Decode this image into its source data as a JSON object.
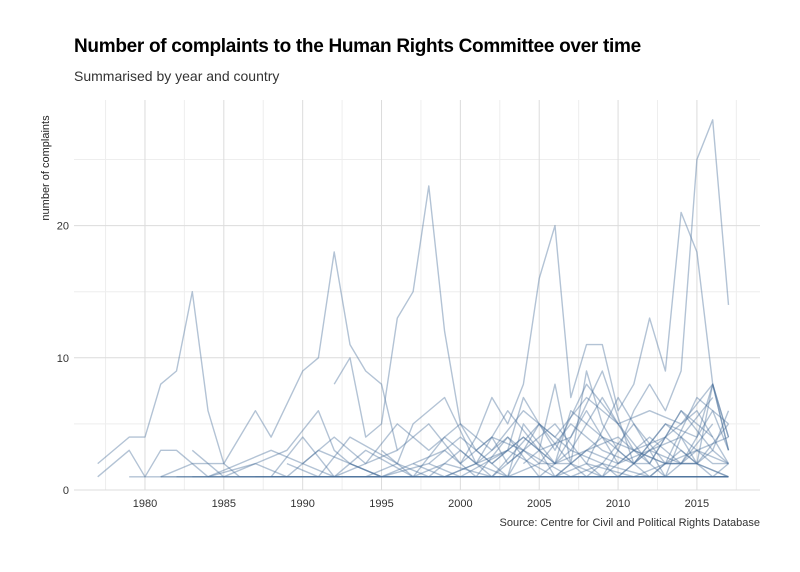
{
  "title": "Number of complaints to the Human Rights Committee over time",
  "subtitle": "Summarised by year and country",
  "caption": "Source: Centre for Civil and Political Rights Database",
  "colors": {
    "line": "#4a6f9a",
    "grid_major": "#dcdcdc",
    "grid_minor": "#eeeeee"
  },
  "chart_data": {
    "type": "line",
    "title": "Number of complaints to the Human Rights Committee over time",
    "subtitle": "Summarised by year and country",
    "xlabel": "",
    "ylabel": "number of complaints",
    "xlim": [
      1975.5,
      2019
    ],
    "ylim": [
      0,
      29.5
    ],
    "x_ticks": [
      1980,
      1985,
      1990,
      1995,
      2000,
      2005,
      2010,
      2015
    ],
    "y_ticks": [
      0,
      10,
      20
    ],
    "grid": true,
    "series": [
      {
        "x": [
          1977,
          1979,
          1980,
          1981,
          1982,
          1983,
          1984,
          1985,
          1986
        ],
        "y": [
          2,
          4,
          4,
          8,
          9,
          15,
          6,
          2,
          1
        ]
      },
      {
        "x": [
          1977,
          1979,
          1980,
          1981,
          1982,
          1984,
          1986
        ],
        "y": [
          1,
          3,
          1,
          3,
          3,
          1,
          2
        ]
      },
      {
        "x": [
          1981,
          1983,
          1985,
          1987,
          1988,
          1990,
          1991,
          1992,
          1993,
          1994,
          1995,
          1996
        ],
        "y": [
          1,
          2,
          2,
          6,
          4,
          9,
          10,
          18,
          11,
          9,
          8,
          3
        ]
      },
      {
        "x": [
          1983,
          1985,
          1987,
          1989,
          1991,
          1992,
          1993,
          1995
        ],
        "y": [
          3,
          1,
          2,
          3,
          6,
          3,
          2,
          1
        ]
      },
      {
        "x": [
          1992,
          1993,
          1994,
          1995,
          1996,
          1997,
          1998,
          1999,
          2000,
          2001,
          2002,
          2003,
          2004
        ],
        "y": [
          8,
          10,
          4,
          5,
          13,
          15,
          23,
          12,
          5,
          3,
          4,
          2,
          3
        ]
      },
      {
        "x": [
          2000,
          2001,
          2002,
          2003,
          2004,
          2005,
          2006,
          2007,
          2008,
          2009,
          2010,
          2011,
          2012,
          2013,
          2014,
          2015,
          2016,
          2017
        ],
        "y": [
          2,
          4,
          7,
          5,
          8,
          16,
          20,
          7,
          11,
          11,
          6,
          8,
          13,
          9,
          21,
          18,
          8,
          3
        ]
      },
      {
        "x": [
          2005,
          2006,
          2007,
          2008,
          2009,
          2010,
          2011,
          2012,
          2013,
          2014,
          2015,
          2016,
          2017
        ],
        "y": [
          3,
          8,
          2,
          9,
          5,
          3,
          6,
          8,
          6,
          9,
          25,
          28,
          14
        ]
      },
      {
        "x": [
          1986,
          1988,
          1990,
          1992,
          1994,
          1996,
          1998,
          2000,
          2002,
          2004,
          2006,
          2008,
          2010,
          2012,
          2014,
          2016,
          2017
        ],
        "y": [
          2,
          3,
          2,
          4,
          2,
          5,
          3,
          5,
          3,
          6,
          4,
          7,
          5,
          6,
          5,
          8,
          4
        ]
      },
      {
        "x": [
          1984,
          1987,
          1989,
          1991,
          1993,
          1995,
          1997,
          1999,
          2001,
          2003,
          2005,
          2007,
          2009,
          2011,
          2013,
          2015,
          2017
        ],
        "y": [
          1,
          2,
          1,
          3,
          2,
          1,
          2,
          3,
          1,
          4,
          2,
          5,
          3,
          2,
          4,
          6,
          2
        ]
      },
      {
        "x": [
          1988,
          1990,
          1992,
          1994,
          1996,
          1998,
          2000,
          2002,
          2004,
          2006,
          2008,
          2010,
          2012,
          2014,
          2016
        ],
        "y": [
          1,
          4,
          1,
          2,
          3,
          5,
          2,
          4,
          3,
          5,
          2,
          7,
          3,
          4,
          7
        ]
      },
      {
        "x": [
          1989,
          1991,
          1993,
          1996,
          1998,
          2000,
          2002,
          2005,
          2007,
          2009,
          2011,
          2013,
          2015,
          2017
        ],
        "y": [
          2,
          1,
          4,
          2,
          1,
          3,
          1,
          5,
          2,
          4,
          3,
          2,
          7,
          5
        ]
      },
      {
        "x": [
          1994,
          1996,
          1997,
          1999,
          2001,
          2003,
          2004,
          2006,
          2008,
          2010,
          2012,
          2014,
          2016,
          2017
        ],
        "y": [
          1,
          2,
          5,
          7,
          2,
          3,
          7,
          3,
          8,
          5,
          2,
          6,
          3,
          6
        ]
      },
      {
        "x": [
          1995,
          1997,
          1999,
          2001,
          2003,
          2005,
          2007,
          2009,
          2011,
          2013,
          2015,
          2016,
          2017
        ],
        "y": [
          3,
          1,
          4,
          2,
          6,
          3,
          4,
          9,
          2,
          5,
          4,
          8,
          4
        ]
      },
      {
        "x": [
          1998,
          2000,
          2002,
          2004,
          2006,
          2008,
          2010,
          2012,
          2014,
          2016
        ],
        "y": [
          2,
          4,
          2,
          4,
          2,
          3,
          2,
          3,
          2,
          5
        ]
      },
      {
        "x": [
          1999,
          2001,
          2003,
          2005,
          2007,
          2009,
          2011,
          2013,
          2015,
          2017
        ],
        "y": [
          1,
          2,
          4,
          1,
          3,
          2,
          5,
          2,
          3,
          2
        ]
      },
      {
        "x": [
          2001,
          2003,
          2004,
          2006,
          2008,
          2010,
          2012,
          2014,
          2016,
          2017
        ],
        "y": [
          3,
          1,
          5,
          2,
          6,
          2,
          4,
          2,
          6,
          3
        ]
      },
      {
        "x": [
          2002,
          2004,
          2006,
          2007,
          2009,
          2011,
          2013,
          2015,
          2017
        ],
        "y": [
          2,
          4,
          2,
          6,
          4,
          2,
          5,
          3,
          4
        ]
      },
      {
        "x": [
          2003,
          2005,
          2007,
          2009,
          2011,
          2013,
          2015,
          2017
        ],
        "y": [
          1,
          5,
          3,
          7,
          3,
          4,
          2,
          5
        ]
      },
      {
        "x": [
          2006,
          2008,
          2010,
          2012,
          2014,
          2016
        ],
        "y": [
          1,
          3,
          4,
          2,
          6,
          4
        ]
      },
      {
        "x": [
          2008,
          2009,
          2010,
          2011,
          2012,
          2013,
          2014,
          2015,
          2016,
          2017
        ],
        "y": [
          2,
          1,
          3,
          2,
          3,
          1,
          4,
          2,
          8,
          3
        ]
      },
      {
        "x": [
          1981,
          1985,
          1990,
          1995,
          2000,
          2005,
          2010,
          2015,
          2017
        ],
        "y": [
          1,
          1,
          1,
          1,
          1,
          1,
          1,
          1,
          1
        ]
      },
      {
        "x": [
          1979,
          1984,
          1989,
          1994,
          1999,
          2004,
          2009,
          2014,
          2017
        ],
        "y": [
          1,
          1,
          1,
          1,
          1,
          1,
          1,
          1,
          1
        ]
      },
      {
        "x": [
          1986,
          1991,
          1996,
          2001,
          2006,
          2011,
          2016,
          2017
        ],
        "y": [
          1,
          1,
          1,
          1,
          1,
          1,
          1,
          1
        ]
      },
      {
        "x": [
          1983,
          1993,
          2003,
          2013,
          2017
        ],
        "y": [
          1,
          1,
          1,
          1,
          1
        ]
      },
      {
        "x": [
          1988,
          1998,
          2008,
          2017
        ],
        "y": [
          1,
          1,
          1,
          1
        ]
      },
      {
        "x": [
          1982,
          1992,
          2002,
          2012,
          2017
        ],
        "y": [
          1,
          1,
          1,
          1,
          1
        ]
      },
      {
        "x": [
          1987,
          1997,
          2007,
          2017
        ],
        "y": [
          1,
          1,
          1,
          1
        ]
      },
      {
        "x": [
          1990,
          1992,
          1994,
          1997,
          1999,
          2002,
          2004,
          2007,
          2009,
          2012,
          2014,
          2016,
          2017
        ],
        "y": [
          2,
          1,
          3,
          1,
          2,
          1,
          3,
          1,
          2,
          1,
          3,
          1,
          2
        ]
      },
      {
        "x": [
          1993,
          1995,
          1998,
          2000,
          2003,
          2006,
          2008,
          2011,
          2013,
          2015,
          2017
        ],
        "y": [
          2,
          1,
          2,
          1,
          3,
          1,
          2,
          1,
          2,
          2,
          1
        ]
      },
      {
        "x": [
          2004,
          2005,
          2006,
          2007,
          2008,
          2009,
          2010,
          2011,
          2012,
          2013,
          2014,
          2015,
          2016,
          2017
        ],
        "y": [
          2,
          3,
          1,
          2,
          1,
          2,
          1,
          2,
          2,
          1,
          2,
          2,
          3,
          2
        ]
      },
      {
        "x": [
          2010,
          2011,
          2012,
          2013,
          2014,
          2015,
          2016,
          2017
        ],
        "y": [
          1,
          2,
          1,
          2,
          2,
          3,
          2,
          2
        ]
      },
      {
        "x": [
          1997,
          1999,
          2001,
          2003,
          2005,
          2007,
          2009,
          2011,
          2013,
          2015,
          2017
        ],
        "y": [
          2,
          1,
          2,
          1,
          2,
          2,
          1,
          3,
          2,
          2,
          1
        ]
      }
    ]
  }
}
